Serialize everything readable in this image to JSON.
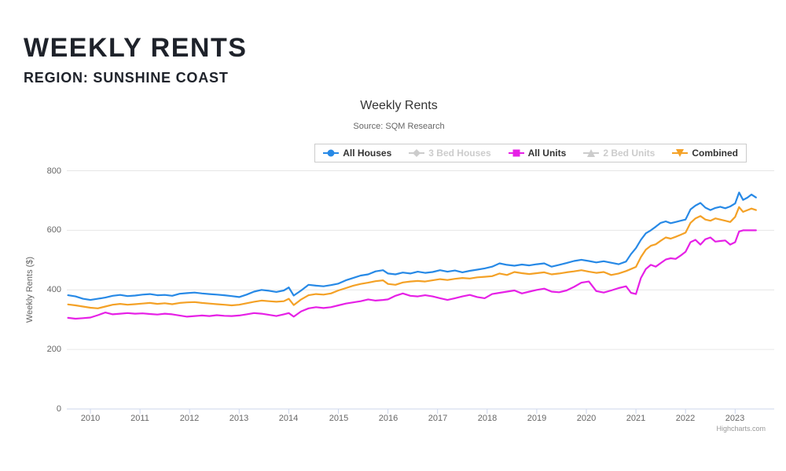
{
  "header": {
    "title": "WEEKLY RENTS",
    "region": "REGION: SUNSHINE COAST"
  },
  "chart_data": {
    "type": "line",
    "title": "Weekly Rents",
    "subtitle": "Source: SQM Research",
    "credit": "Highcharts.com",
    "xlabel": "",
    "ylabel": "Weekly Rents ($)",
    "x_ticks": [
      2010,
      2011,
      2012,
      2013,
      2014,
      2015,
      2016,
      2017,
      2018,
      2019,
      2020,
      2021,
      2022,
      2023
    ],
    "y_ticks": [
      0,
      200,
      400,
      600,
      800
    ],
    "ylim": [
      0,
      800
    ],
    "xlim": [
      2009.45,
      2023.75
    ],
    "grid": "horizontal",
    "legend_position": "top-right",
    "axis_line_color": "#ccd6eb",
    "gridline_color": "#e6e6e6",
    "x": [
      2009.55,
      2009.7,
      2009.85,
      2010.0,
      2010.15,
      2010.3,
      2010.45,
      2010.6,
      2010.75,
      2010.9,
      2011.05,
      2011.2,
      2011.35,
      2011.5,
      2011.65,
      2011.8,
      2011.95,
      2012.1,
      2012.25,
      2012.4,
      2012.55,
      2012.7,
      2012.85,
      2013.0,
      2013.15,
      2013.3,
      2013.45,
      2013.6,
      2013.75,
      2013.9,
      2014.0,
      2014.1,
      2014.25,
      2014.4,
      2014.55,
      2014.7,
      2014.85,
      2015.0,
      2015.15,
      2015.3,
      2015.45,
      2015.6,
      2015.75,
      2015.9,
      2016.0,
      2016.15,
      2016.3,
      2016.45,
      2016.6,
      2016.75,
      2016.9,
      2017.05,
      2017.2,
      2017.35,
      2017.5,
      2017.65,
      2017.8,
      2017.95,
      2018.1,
      2018.25,
      2018.4,
      2018.55,
      2018.7,
      2018.85,
      2019.0,
      2019.15,
      2019.3,
      2019.45,
      2019.6,
      2019.75,
      2019.9,
      2020.05,
      2020.2,
      2020.35,
      2020.5,
      2020.65,
      2020.8,
      2020.9,
      2021.0,
      2021.1,
      2021.2,
      2021.3,
      2021.4,
      2021.5,
      2021.6,
      2021.7,
      2021.8,
      2021.9,
      2022.0,
      2022.1,
      2022.2,
      2022.3,
      2022.4,
      2022.5,
      2022.6,
      2022.7,
      2022.8,
      2022.9,
      2023.0,
      2023.08,
      2023.16,
      2023.25,
      2023.33,
      2023.42
    ],
    "series": [
      {
        "name": "All Houses",
        "color": "#2789e6",
        "marker": "circle",
        "visible": true,
        "values": [
          382,
          378,
          370,
          366,
          370,
          374,
          380,
          383,
          379,
          381,
          384,
          386,
          382,
          383,
          380,
          387,
          389,
          391,
          388,
          386,
          384,
          382,
          379,
          376,
          384,
          394,
          400,
          397,
          393,
          398,
          408,
          381,
          398,
          417,
          414,
          412,
          416,
          421,
          432,
          440,
          448,
          452,
          462,
          466,
          455,
          452,
          458,
          455,
          461,
          457,
          460,
          466,
          461,
          465,
          459,
          464,
          468,
          472,
          478,
          489,
          484,
          481,
          485,
          482,
          486,
          489,
          478,
          484,
          490,
          497,
          501,
          497,
          492,
          496,
          491,
          486,
          495,
          520,
          540,
          568,
          590,
          600,
          612,
          625,
          630,
          624,
          628,
          632,
          636,
          670,
          683,
          692,
          676,
          668,
          675,
          679,
          674,
          680,
          690,
          727,
          702,
          710,
          720,
          710
        ]
      },
      {
        "name": "3 Bed Houses",
        "color": "#cccccc",
        "marker": "diamond",
        "visible": false,
        "values": []
      },
      {
        "name": "All Units",
        "color": "#e620e6",
        "marker": "square",
        "visible": true,
        "values": [
          306,
          303,
          305,
          307,
          315,
          324,
          318,
          320,
          322,
          320,
          321,
          319,
          317,
          320,
          318,
          314,
          310,
          312,
          314,
          312,
          315,
          313,
          312,
          314,
          318,
          322,
          320,
          316,
          312,
          318,
          322,
          310,
          328,
          338,
          342,
          339,
          342,
          348,
          354,
          358,
          362,
          368,
          364,
          366,
          368,
          380,
          388,
          380,
          378,
          382,
          378,
          372,
          366,
          372,
          378,
          383,
          376,
          372,
          386,
          390,
          394,
          398,
          388,
          394,
          400,
          404,
          394,
          392,
          398,
          410,
          424,
          428,
          396,
          391,
          398,
          406,
          412,
          390,
          386,
          440,
          470,
          484,
          478,
          490,
          502,
          506,
          504,
          515,
          528,
          560,
          568,
          552,
          570,
          576,
          562,
          564,
          566,
          552,
          560,
          596,
          600,
          600,
          600,
          600
        ]
      },
      {
        "name": "2 Bed Units",
        "color": "#cccccc",
        "marker": "triangle",
        "visible": false,
        "values": []
      },
      {
        "name": "Combined",
        "color": "#f4a126",
        "marker": "triangle-down",
        "visible": true,
        "values": [
          351,
          348,
          344,
          340,
          338,
          344,
          350,
          353,
          350,
          352,
          354,
          356,
          353,
          355,
          352,
          356,
          358,
          359,
          356,
          354,
          352,
          350,
          348,
          350,
          355,
          360,
          364,
          362,
          360,
          362,
          370,
          349,
          368,
          382,
          386,
          384,
          388,
          398,
          406,
          414,
          420,
          424,
          429,
          432,
          420,
          417,
          425,
          428,
          430,
          428,
          432,
          436,
          433,
          437,
          440,
          438,
          442,
          444,
          446,
          455,
          450,
          460,
          456,
          453,
          456,
          459,
          452,
          455,
          459,
          462,
          466,
          461,
          457,
          460,
          450,
          455,
          463,
          470,
          477,
          510,
          535,
          548,
          553,
          565,
          576,
          572,
          578,
          585,
          592,
          625,
          640,
          648,
          636,
          632,
          640,
          636,
          632,
          628,
          645,
          678,
          662,
          668,
          673,
          668
        ]
      }
    ]
  }
}
